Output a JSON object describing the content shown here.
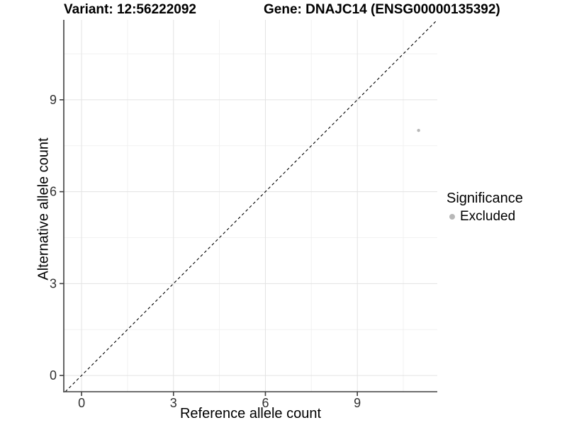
{
  "header": {
    "variant_title": "Variant: 12:56222092",
    "gene_title": "Gene: DNAJC14 (ENSG00000135392)"
  },
  "chart_data": {
    "type": "scatter",
    "title": "Variant: 12:56222092 — Gene: DNAJC14 (ENSG00000135392)",
    "xlabel": "Reference allele count",
    "ylabel": "Alternative allele count",
    "xlim": [
      -0.58,
      11.61
    ],
    "ylim": [
      -0.53,
      11.61
    ],
    "x_ticks": [
      0,
      3,
      6,
      9
    ],
    "y_ticks": [
      0,
      3,
      6,
      9
    ],
    "grid": {
      "major": true,
      "minor": true
    },
    "points": [
      {
        "x": 11,
        "y": 8,
        "significance": "Excluded"
      }
    ],
    "reference_line": {
      "type": "identity y=x",
      "style": "dashed",
      "color": "#000000"
    },
    "legend": {
      "title": "Significance",
      "position": "right",
      "items": [
        {
          "label": "Excluded",
          "color": "#b8b8b8"
        }
      ]
    },
    "colors": {
      "point": "#b8b8b8",
      "grid_major": "#e3e3e3",
      "grid_minor": "#f1f1f1",
      "axis_line": "#3f3f3f",
      "tick_label": "#303030",
      "background": "#ffffff"
    }
  }
}
